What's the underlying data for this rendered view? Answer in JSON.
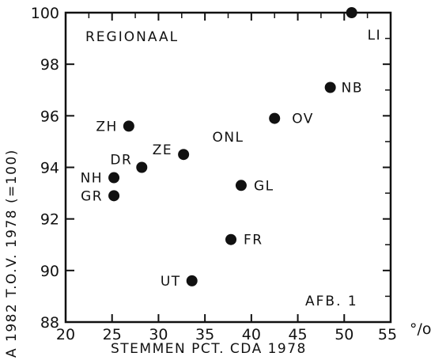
{
  "chart_data": {
    "type": "scatter",
    "title": "REGIONAAL",
    "annotation": "AFB. 1",
    "xlabel": "STEMMEN PCT. CDA 1978",
    "ylabel": "A 1982 T.O.V. 1978 (=100)",
    "x_unit": "°/o",
    "xlim": [
      20,
      55
    ],
    "ylim": [
      88,
      100
    ],
    "xticks": [
      20,
      25,
      30,
      35,
      40,
      45,
      50,
      55
    ],
    "yticks": [
      88,
      90,
      92,
      94,
      96,
      98,
      100
    ],
    "grid": false,
    "points": [
      {
        "label": "LI",
        "x": 50.8,
        "y": 100.0
      },
      {
        "label": "NB",
        "x": 48.5,
        "y": 97.1
      },
      {
        "label": "OV",
        "x": 42.5,
        "y": 95.9
      },
      {
        "label": "ZH",
        "x": 26.8,
        "y": 95.6
      },
      {
        "label": "ZE",
        "x": 32.7,
        "y": 94.5
      },
      {
        "label": "DR",
        "x": 28.2,
        "y": 94.0
      },
      {
        "label": "NH",
        "x": 25.2,
        "y": 93.6
      },
      {
        "label": "GL",
        "x": 38.9,
        "y": 93.3
      },
      {
        "label": "GR",
        "x": 25.2,
        "y": 92.9
      },
      {
        "label": "FR",
        "x": 37.8,
        "y": 91.2
      },
      {
        "label": "UT",
        "x": 33.6,
        "y": 89.6
      }
    ],
    "annotations": [
      {
        "text": "ONL",
        "x": 37.5,
        "y": 95.0
      }
    ]
  }
}
